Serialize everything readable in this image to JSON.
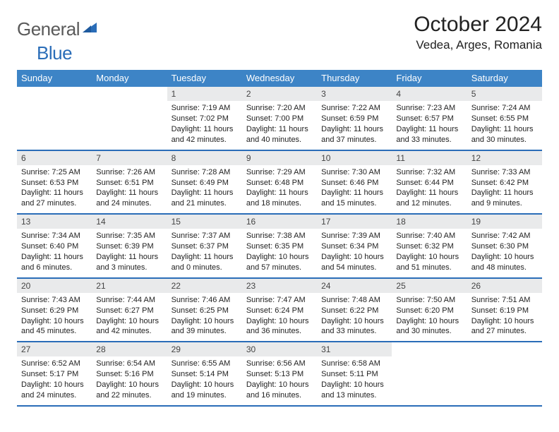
{
  "logo": {
    "text1": "General",
    "text2": "Blue"
  },
  "title": "October 2024",
  "location": "Vedea, Arges, Romania",
  "colors": {
    "header_bg": "#3d84c6",
    "rule": "#2a6db8",
    "daynum_bg": "#e9eaeb",
    "logo_gray": "#5a5a5a",
    "logo_blue": "#2a6db8"
  },
  "weekdays": [
    "Sunday",
    "Monday",
    "Tuesday",
    "Wednesday",
    "Thursday",
    "Friday",
    "Saturday"
  ],
  "weeks": [
    [
      null,
      null,
      {
        "n": "1",
        "sr": "7:19 AM",
        "ss": "7:02 PM",
        "dl": "11 hours and 42 minutes."
      },
      {
        "n": "2",
        "sr": "7:20 AM",
        "ss": "7:00 PM",
        "dl": "11 hours and 40 minutes."
      },
      {
        "n": "3",
        "sr": "7:22 AM",
        "ss": "6:59 PM",
        "dl": "11 hours and 37 minutes."
      },
      {
        "n": "4",
        "sr": "7:23 AM",
        "ss": "6:57 PM",
        "dl": "11 hours and 33 minutes."
      },
      {
        "n": "5",
        "sr": "7:24 AM",
        "ss": "6:55 PM",
        "dl": "11 hours and 30 minutes."
      }
    ],
    [
      {
        "n": "6",
        "sr": "7:25 AM",
        "ss": "6:53 PM",
        "dl": "11 hours and 27 minutes."
      },
      {
        "n": "7",
        "sr": "7:26 AM",
        "ss": "6:51 PM",
        "dl": "11 hours and 24 minutes."
      },
      {
        "n": "8",
        "sr": "7:28 AM",
        "ss": "6:49 PM",
        "dl": "11 hours and 21 minutes."
      },
      {
        "n": "9",
        "sr": "7:29 AM",
        "ss": "6:48 PM",
        "dl": "11 hours and 18 minutes."
      },
      {
        "n": "10",
        "sr": "7:30 AM",
        "ss": "6:46 PM",
        "dl": "11 hours and 15 minutes."
      },
      {
        "n": "11",
        "sr": "7:32 AM",
        "ss": "6:44 PM",
        "dl": "11 hours and 12 minutes."
      },
      {
        "n": "12",
        "sr": "7:33 AM",
        "ss": "6:42 PM",
        "dl": "11 hours and 9 minutes."
      }
    ],
    [
      {
        "n": "13",
        "sr": "7:34 AM",
        "ss": "6:40 PM",
        "dl": "11 hours and 6 minutes."
      },
      {
        "n": "14",
        "sr": "7:35 AM",
        "ss": "6:39 PM",
        "dl": "11 hours and 3 minutes."
      },
      {
        "n": "15",
        "sr": "7:37 AM",
        "ss": "6:37 PM",
        "dl": "11 hours and 0 minutes."
      },
      {
        "n": "16",
        "sr": "7:38 AM",
        "ss": "6:35 PM",
        "dl": "10 hours and 57 minutes."
      },
      {
        "n": "17",
        "sr": "7:39 AM",
        "ss": "6:34 PM",
        "dl": "10 hours and 54 minutes."
      },
      {
        "n": "18",
        "sr": "7:40 AM",
        "ss": "6:32 PM",
        "dl": "10 hours and 51 minutes."
      },
      {
        "n": "19",
        "sr": "7:42 AM",
        "ss": "6:30 PM",
        "dl": "10 hours and 48 minutes."
      }
    ],
    [
      {
        "n": "20",
        "sr": "7:43 AM",
        "ss": "6:29 PM",
        "dl": "10 hours and 45 minutes."
      },
      {
        "n": "21",
        "sr": "7:44 AM",
        "ss": "6:27 PM",
        "dl": "10 hours and 42 minutes."
      },
      {
        "n": "22",
        "sr": "7:46 AM",
        "ss": "6:25 PM",
        "dl": "10 hours and 39 minutes."
      },
      {
        "n": "23",
        "sr": "7:47 AM",
        "ss": "6:24 PM",
        "dl": "10 hours and 36 minutes."
      },
      {
        "n": "24",
        "sr": "7:48 AM",
        "ss": "6:22 PM",
        "dl": "10 hours and 33 minutes."
      },
      {
        "n": "25",
        "sr": "7:50 AM",
        "ss": "6:20 PM",
        "dl": "10 hours and 30 minutes."
      },
      {
        "n": "26",
        "sr": "7:51 AM",
        "ss": "6:19 PM",
        "dl": "10 hours and 27 minutes."
      }
    ],
    [
      {
        "n": "27",
        "sr": "6:52 AM",
        "ss": "5:17 PM",
        "dl": "10 hours and 24 minutes."
      },
      {
        "n": "28",
        "sr": "6:54 AM",
        "ss": "5:16 PM",
        "dl": "10 hours and 22 minutes."
      },
      {
        "n": "29",
        "sr": "6:55 AM",
        "ss": "5:14 PM",
        "dl": "10 hours and 19 minutes."
      },
      {
        "n": "30",
        "sr": "6:56 AM",
        "ss": "5:13 PM",
        "dl": "10 hours and 16 minutes."
      },
      {
        "n": "31",
        "sr": "6:58 AM",
        "ss": "5:11 PM",
        "dl": "10 hours and 13 minutes."
      },
      null,
      null
    ]
  ],
  "labels": {
    "sunrise": "Sunrise: ",
    "sunset": "Sunset: ",
    "daylight": "Daylight: "
  }
}
